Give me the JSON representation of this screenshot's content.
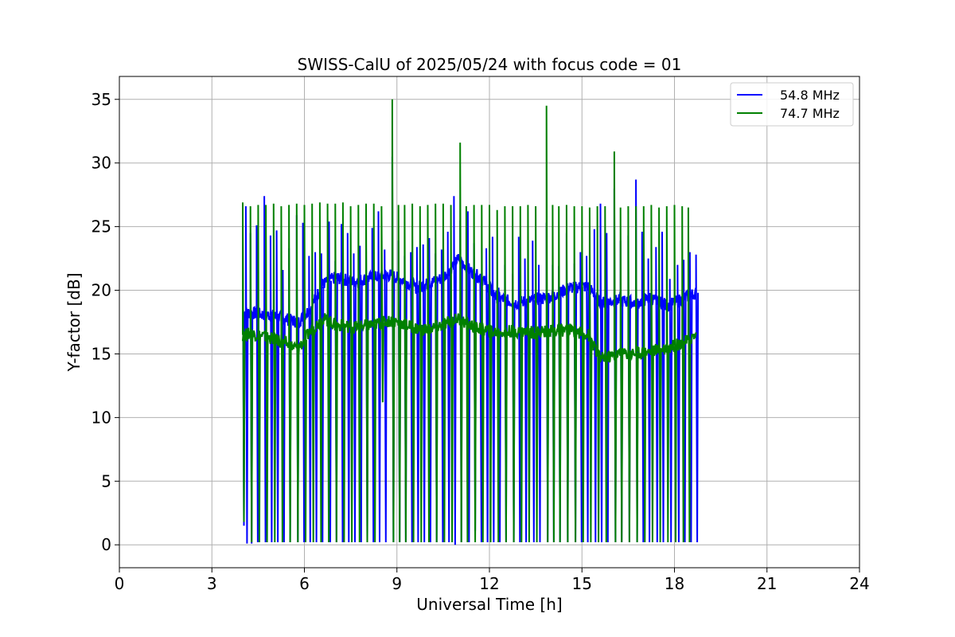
{
  "chart_data": {
    "type": "line",
    "title": "SWISS-CalU of 2025/05/24 with focus code = 01",
    "xlabel": "Universal Time [h]",
    "ylabel": "Y-factor [dB]",
    "xlim": [
      0,
      24
    ],
    "ylim": [
      -1.8,
      36.8
    ],
    "xticks": [
      0,
      3,
      6,
      9,
      12,
      15,
      18,
      21,
      24
    ],
    "yticks": [
      0,
      5,
      10,
      15,
      20,
      25,
      30,
      35
    ],
    "grid": true,
    "legend_position": "top-right",
    "baseline_knots": [
      {
        "x": [
          4.0,
          4.3,
          5.0,
          5.8,
          6.2,
          6.6,
          7.0,
          7.6,
          8.2,
          8.8,
          9.2,
          9.6,
          10.0,
          10.5,
          11.0,
          11.4,
          11.8,
          12.2,
          12.8,
          13.4,
          14.0,
          14.6,
          15.2,
          15.6,
          16.2,
          16.8,
          17.2,
          17.8,
          18.4,
          18.7
        ],
        "y": [
          18.3,
          18.2,
          18.0,
          17.5,
          18.6,
          20.5,
          21.0,
          20.7,
          21.0,
          21.2,
          20.8,
          20.2,
          20.5,
          21.0,
          22.5,
          21.5,
          20.8,
          19.5,
          19.0,
          19.2,
          19.5,
          20.2,
          20.3,
          19.0,
          19.2,
          19.0,
          19.4,
          18.8,
          19.5,
          19.8
        ]
      },
      {
        "x": [
          4.0,
          4.3,
          5.0,
          5.8,
          6.2,
          6.6,
          7.0,
          7.6,
          8.2,
          8.8,
          9.2,
          9.6,
          10.0,
          10.5,
          11.0,
          11.4,
          11.8,
          12.2,
          12.8,
          13.4,
          14.0,
          14.6,
          15.2,
          15.6,
          16.2,
          16.8,
          17.2,
          17.8,
          18.4,
          18.7
        ],
        "y": [
          16.5,
          16.6,
          16.2,
          15.4,
          16.8,
          17.8,
          17.3,
          17.1,
          17.3,
          17.6,
          17.4,
          17.0,
          16.9,
          17.3,
          17.8,
          17.2,
          16.9,
          16.7,
          16.8,
          16.7,
          16.8,
          16.9,
          16.5,
          14.6,
          15.0,
          15.1,
          15.2,
          15.5,
          16.0,
          16.5
        ]
      }
    ],
    "series": [
      {
        "name": "54.8 MHz",
        "color": "#0000ff",
        "spikes_x": [
          4.0,
          4.1,
          4.25,
          4.45,
          4.7,
          4.9,
          5.1,
          5.3,
          5.5,
          5.75,
          5.95,
          6.15,
          6.35,
          6.55,
          6.8,
          7.0,
          7.2,
          7.4,
          7.6,
          7.8,
          8.0,
          8.2,
          8.4,
          8.6,
          8.85,
          9.05,
          9.25,
          9.45,
          9.65,
          9.85,
          10.05,
          10.25,
          10.45,
          10.65,
          10.85,
          11.05,
          11.3,
          11.5,
          11.7,
          11.9,
          12.1,
          12.3,
          12.5,
          12.75,
          12.95,
          13.15,
          13.4,
          13.6,
          13.85,
          14.05,
          14.25,
          14.5,
          14.75,
          14.95,
          15.15,
          15.4,
          15.6,
          15.8,
          16.05,
          16.25,
          16.5,
          16.75,
          16.95,
          17.15,
          17.4,
          17.6,
          17.85,
          18.1,
          18.3,
          18.5,
          18.7
        ],
        "spikes_peak": [
          24.7,
          26.6,
          24.5,
          25.1,
          27.4,
          24.3,
          24.7,
          21.6,
          23.3,
          25.9,
          25.3,
          22.7,
          23.0,
          22.9,
          25.4,
          22.3,
          25.2,
          24.5,
          22.9,
          23.5,
          23.6,
          24.9,
          26.2,
          23.2,
          30.5,
          23.9,
          22.7,
          23.0,
          23.4,
          23.6,
          24.1,
          22.9,
          23.2,
          24.6,
          27.4,
          25.5,
          26.2,
          23.7,
          21.3,
          23.3,
          24.2,
          20.2,
          22.0,
          21.3,
          24.2,
          22.5,
          23.9,
          22.0,
          25.3,
          22.0,
          21.9,
          24.5,
          22.1,
          23.0,
          22.7,
          24.8,
          26.8,
          24.5,
          28.0,
          23.9,
          24.3,
          28.7,
          24.6,
          22.5,
          23.4,
          24.6,
          20.9,
          22.0,
          22.4,
          23.0,
          22.8
        ],
        "spikes_trough": [
          1.5,
          0.1,
          0.1,
          0.2,
          0.2,
          0.2,
          0.2,
          0.2,
          0.2,
          0.2,
          0.2,
          0.2,
          0.2,
          0.2,
          0.2,
          0.2,
          0.2,
          0.2,
          0.2,
          0.2,
          0.2,
          0.2,
          0.2,
          0.2,
          0.2,
          0.2,
          0.2,
          0.2,
          0.2,
          0.2,
          0.2,
          0.2,
          0.2,
          0.2,
          0.0,
          0.2,
          0.2,
          1.1,
          0.2,
          0.2,
          0.2,
          0.2,
          0.2,
          0.2,
          0.2,
          0.2,
          0.2,
          0.2,
          0.2,
          0.2,
          0.2,
          0.2,
          0.2,
          0.2,
          0.2,
          0.2,
          0.2,
          0.2,
          0.2,
          0.2,
          0.2,
          0.2,
          0.2,
          0.2,
          0.2,
          0.2,
          0.2,
          0.2,
          0.2,
          0.2,
          0.2
        ]
      },
      {
        "name": "74.7 MHz",
        "color": "#008000",
        "spikes_x": [
          4.0,
          4.25,
          4.5,
          4.75,
          5.0,
          5.25,
          5.5,
          5.75,
          6.0,
          6.25,
          6.5,
          6.75,
          7.0,
          7.25,
          7.5,
          7.75,
          8.0,
          8.25,
          8.5,
          8.85,
          9.05,
          9.25,
          9.5,
          9.75,
          10.0,
          10.25,
          10.5,
          10.75,
          11.05,
          11.25,
          11.5,
          11.75,
          12.0,
          12.25,
          12.5,
          12.75,
          13.0,
          13.25,
          13.5,
          13.85,
          14.05,
          14.25,
          14.5,
          14.75,
          15.0,
          15.25,
          15.5,
          15.75,
          16.05,
          16.25,
          16.5,
          16.75,
          17.0,
          17.25,
          17.5,
          17.75,
          18.0,
          18.25,
          18.45
        ],
        "spikes_peak": [
          26.9,
          26.6,
          26.7,
          26.7,
          26.8,
          26.6,
          26.7,
          26.8,
          26.7,
          26.8,
          26.9,
          26.8,
          26.8,
          26.9,
          26.6,
          26.7,
          26.8,
          26.8,
          26.6,
          35.0,
          26.7,
          26.7,
          26.8,
          26.6,
          26.7,
          26.8,
          26.8,
          26.7,
          31.6,
          26.6,
          26.7,
          26.7,
          26.7,
          26.3,
          26.6,
          26.6,
          26.6,
          26.7,
          26.6,
          34.5,
          26.7,
          26.6,
          26.7,
          26.6,
          26.6,
          26.5,
          26.6,
          26.6,
          30.9,
          26.5,
          26.6,
          26.6,
          26.6,
          26.7,
          26.5,
          26.6,
          26.7,
          26.6,
          26.5
        ],
        "spikes_trough": [
          1.8,
          0.2,
          0.2,
          0.2,
          0.2,
          0.2,
          0.2,
          0.2,
          0.2,
          0.2,
          0.2,
          0.2,
          0.2,
          0.2,
          0.2,
          0.2,
          0.2,
          0.2,
          11.2,
          0.2,
          0.2,
          0.2,
          0.2,
          0.2,
          0.2,
          0.2,
          0.2,
          0.2,
          0.2,
          0.2,
          0.2,
          0.2,
          0.2,
          0.2,
          0.2,
          0.2,
          0.2,
          0.2,
          0.2,
          0.2,
          0.2,
          0.2,
          0.2,
          0.2,
          0.2,
          0.2,
          0.2,
          0.2,
          0.2,
          0.2,
          0.2,
          0.2,
          0.2,
          0.2,
          0.2,
          0.2,
          0.2,
          0.2,
          0.2
        ]
      }
    ]
  }
}
